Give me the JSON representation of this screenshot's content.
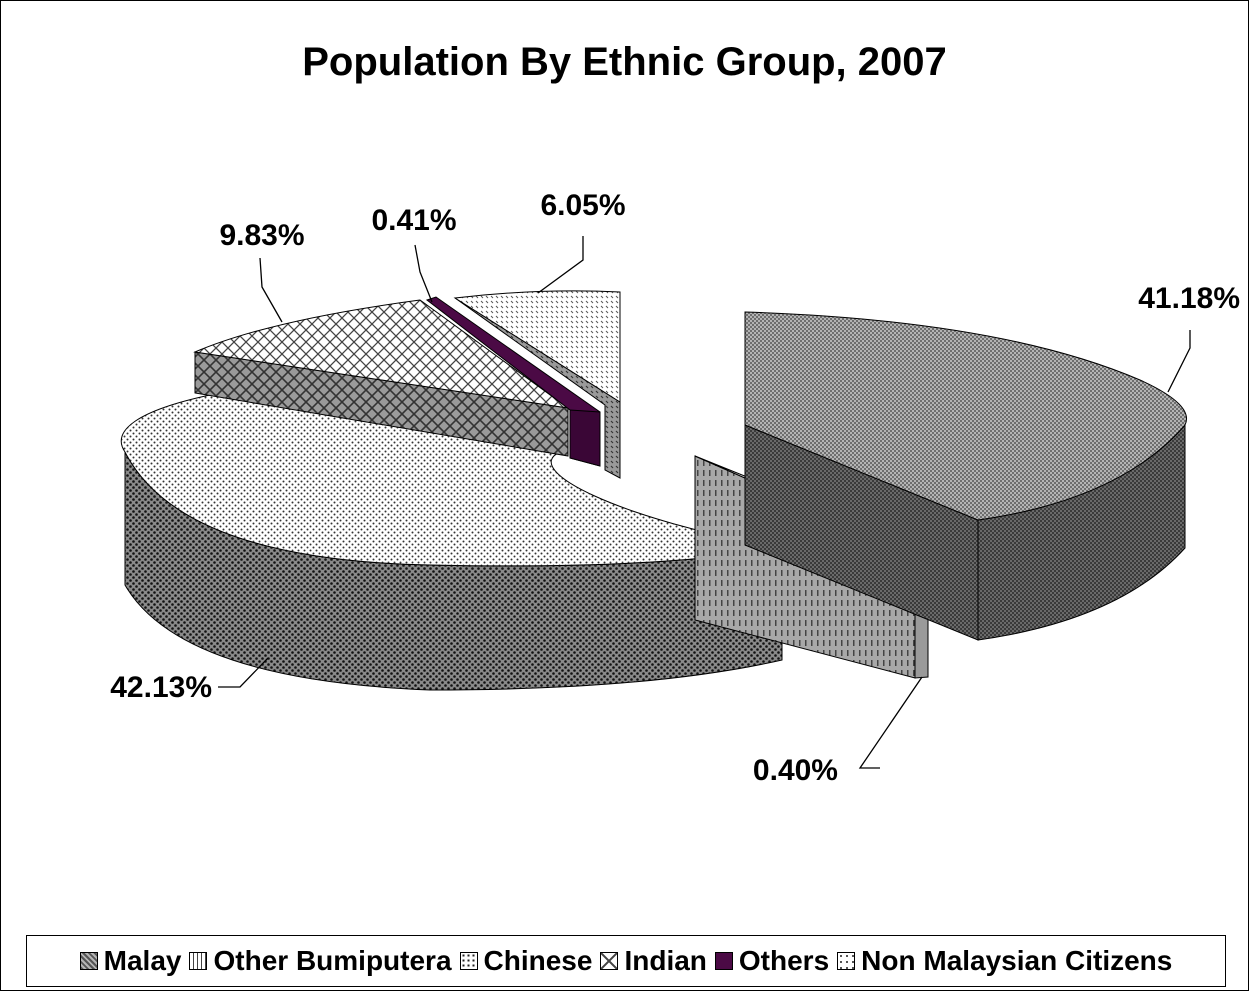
{
  "chart_data": {
    "type": "pie",
    "title": "Population By Ethnic Group, 2007",
    "legend_position": "bottom",
    "style": "3d-exploded",
    "series": [
      {
        "name": "Malay",
        "value": 41.18,
        "label": "41.18%",
        "color": "#9a9a9a"
      },
      {
        "name": "Other Bumiputera",
        "value": 0.4,
        "label": "0.40%",
        "color": "#c0c0c0"
      },
      {
        "name": "Chinese",
        "value": 42.13,
        "label": "42.13%",
        "color": "#d8d8d8"
      },
      {
        "name": "Indian",
        "value": 9.83,
        "label": "9.83%",
        "color": "#e6e6e6"
      },
      {
        "name": "Others",
        "value": 0.41,
        "label": "0.41%",
        "color": "#4b0a45"
      },
      {
        "name": "Non Malaysian Citizens",
        "value": 6.05,
        "label": "6.05%",
        "color": "#f2f2f2"
      }
    ]
  }
}
